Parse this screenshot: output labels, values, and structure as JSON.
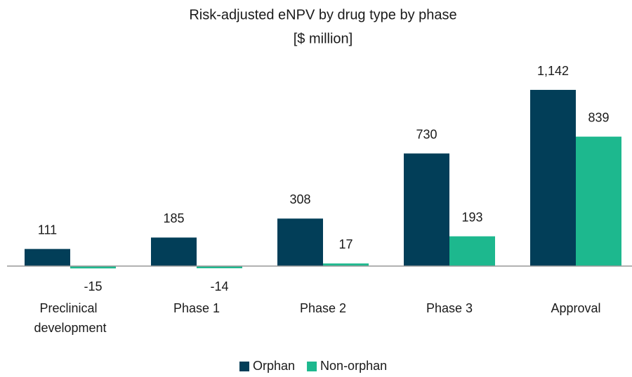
{
  "chart_data": {
    "type": "bar",
    "title": "Risk-adjusted eNPV by drug type by phase",
    "subtitle": "[$ million]",
    "categories": [
      "Preclinical development",
      "Phase 1",
      "Phase 2",
      "Phase 3",
      "Approval"
    ],
    "series": [
      {
        "name": "Orphan",
        "color": "#023e58",
        "values": [
          111,
          185,
          308,
          730,
          1142
        ],
        "value_labels": [
          "111",
          "185",
          "308",
          "730",
          "1,142"
        ]
      },
      {
        "name": "Non-orphan",
        "color": "#1db88e",
        "values": [
          -15,
          -14,
          17,
          193,
          839
        ]
      }
    ],
    "ylim": [
      -100,
      1300
    ],
    "legend": "bottom"
  }
}
